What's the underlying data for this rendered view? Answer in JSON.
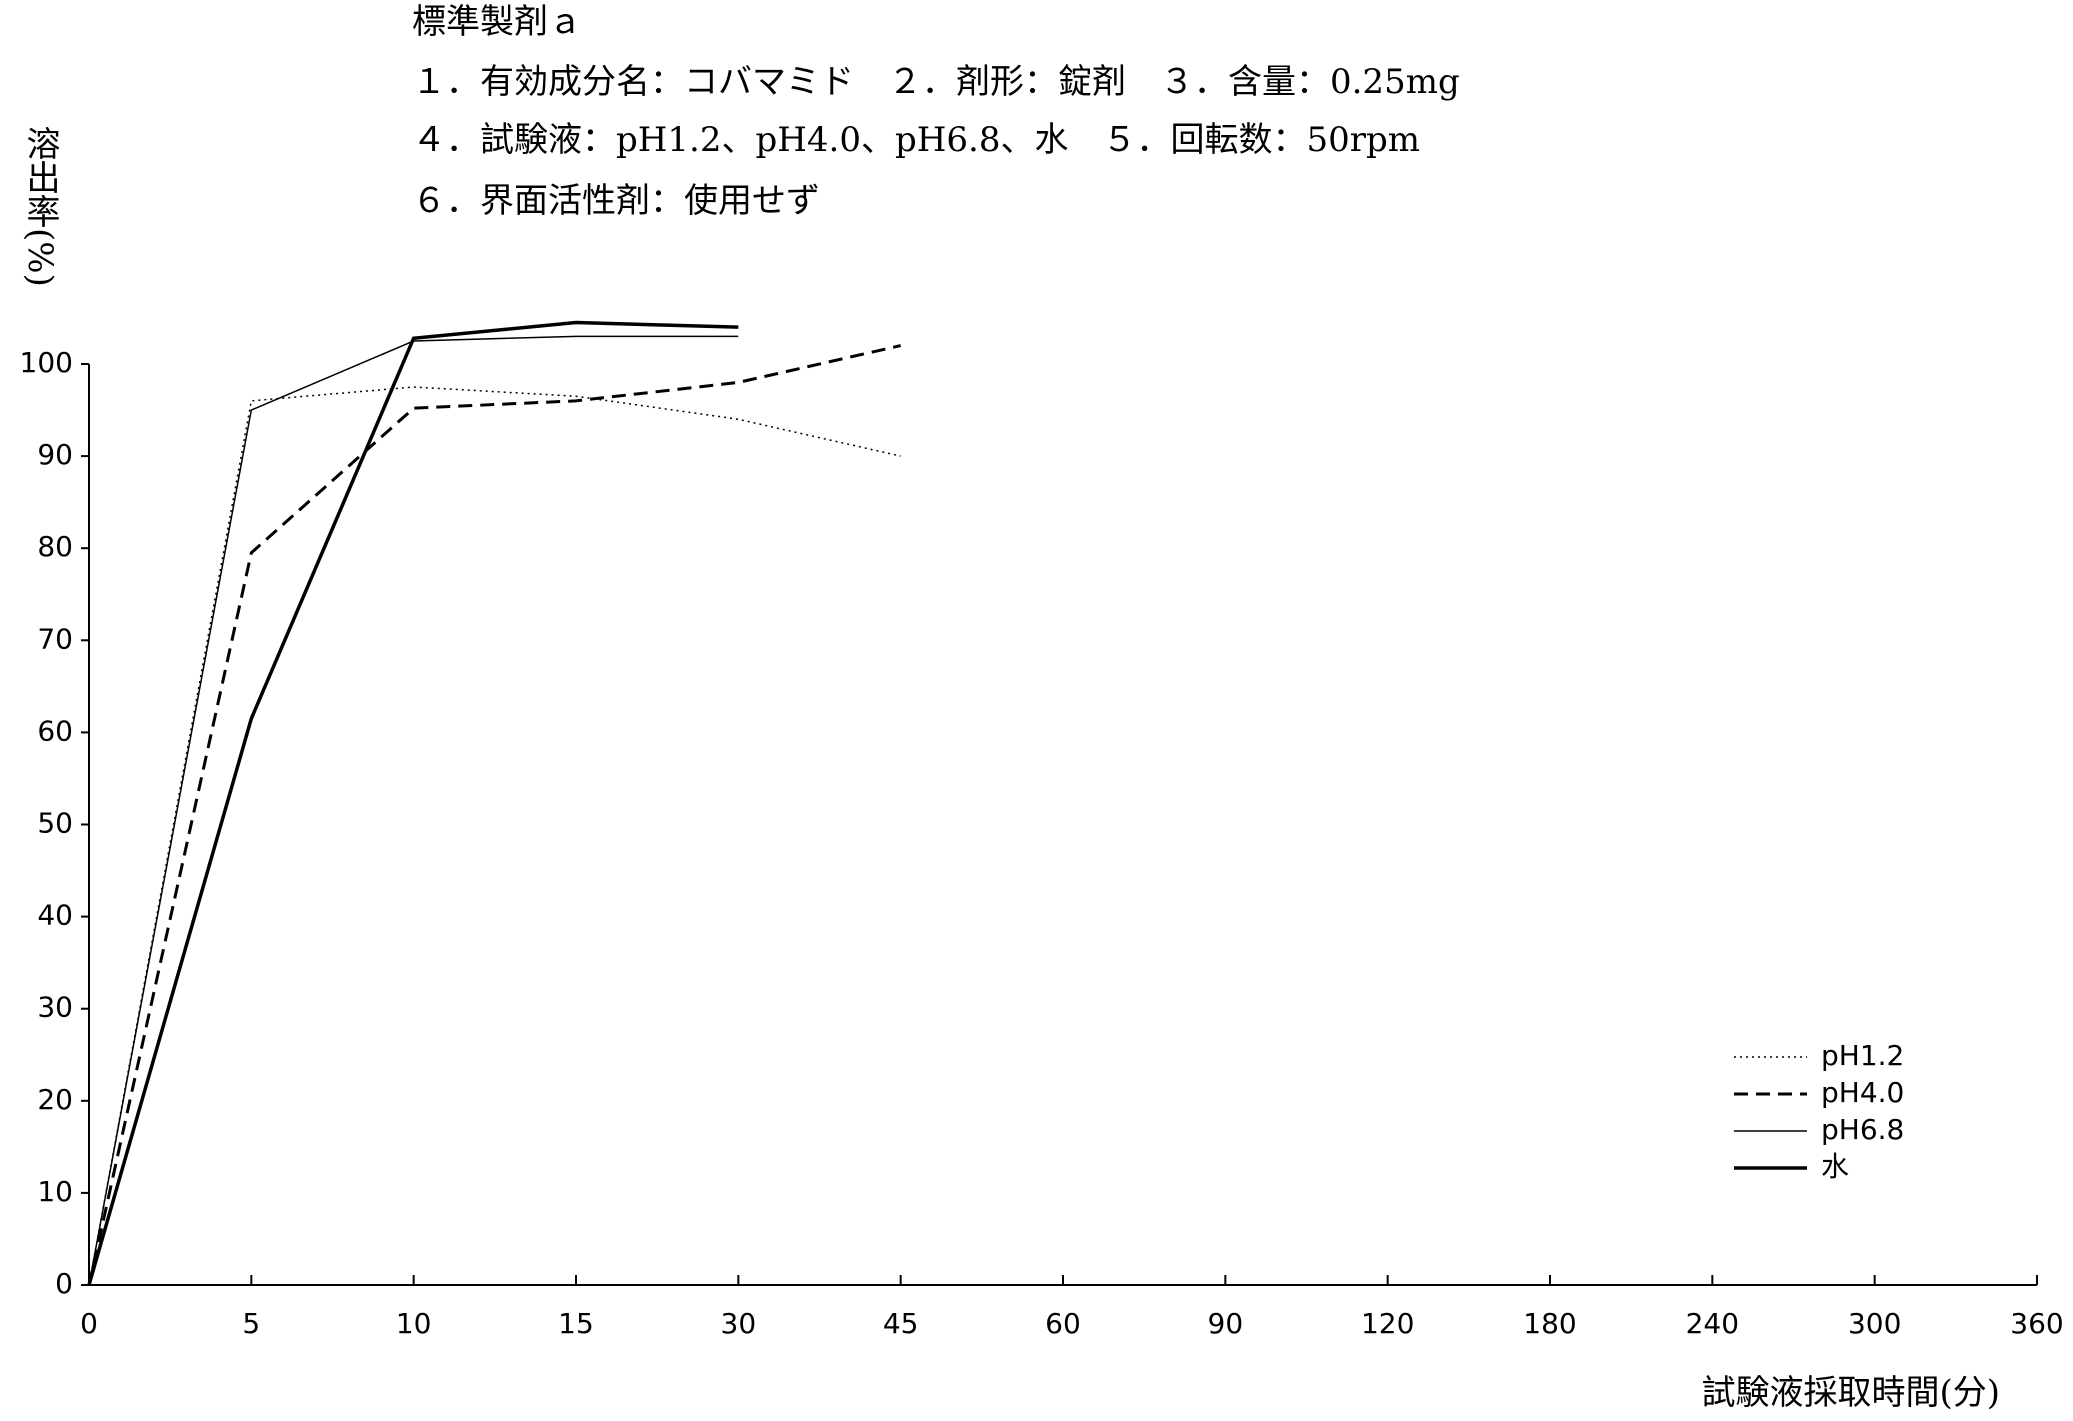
{
  "chart_data": {
    "type": "line",
    "title": "標準製剤ａ",
    "subtitle": [
      "１．有効成分名：コバマミド　２．剤形：錠剤　３．含量：0.25mg",
      "４．試験液：pH1.2、pH4.0、pH6.8、水　５．回転数：50rpm",
      "６．界面活性剤：使用せず"
    ],
    "y_label": "溶出率(%)",
    "x_label": "試験液採取時間(分)",
    "categories": [
      "0",
      "5",
      "10",
      "15",
      "30",
      "45",
      "60",
      "90",
      "120",
      "180",
      "240",
      "300",
      "360"
    ],
    "series": [
      {
        "name": "pH1.2",
        "color": "#000000",
        "dash": "dotted",
        "width": 1.5,
        "values": [
          0,
          96,
          97.5,
          96.5,
          94,
          90,
          null,
          null,
          null,
          null,
          null,
          null,
          null
        ]
      },
      {
        "name": "pH4.0",
        "color": "#000000",
        "dash": "dashed",
        "width": 3,
        "values": [
          0,
          79.5,
          95.2,
          96,
          98,
          102,
          null,
          null,
          null,
          null,
          null,
          null,
          null
        ]
      },
      {
        "name": "pH6.8",
        "color": "#000000",
        "dash": "solid",
        "width": 1.5,
        "values": [
          0,
          95,
          102.5,
          103,
          103,
          null,
          null,
          null,
          null,
          null,
          null,
          null,
          null
        ]
      },
      {
        "name": "水",
        "color": "#000000",
        "dash": "solid",
        "width": 3.5,
        "values": [
          0,
          61.5,
          102.8,
          104.5,
          104,
          null,
          null,
          null,
          null,
          null,
          null,
          null,
          null
        ]
      }
    ],
    "ylim": [
      0,
      100
    ],
    "yticks": [
      0,
      10,
      20,
      30,
      40,
      50,
      60,
      70,
      80,
      90,
      100
    ],
    "legend": "lower right"
  }
}
